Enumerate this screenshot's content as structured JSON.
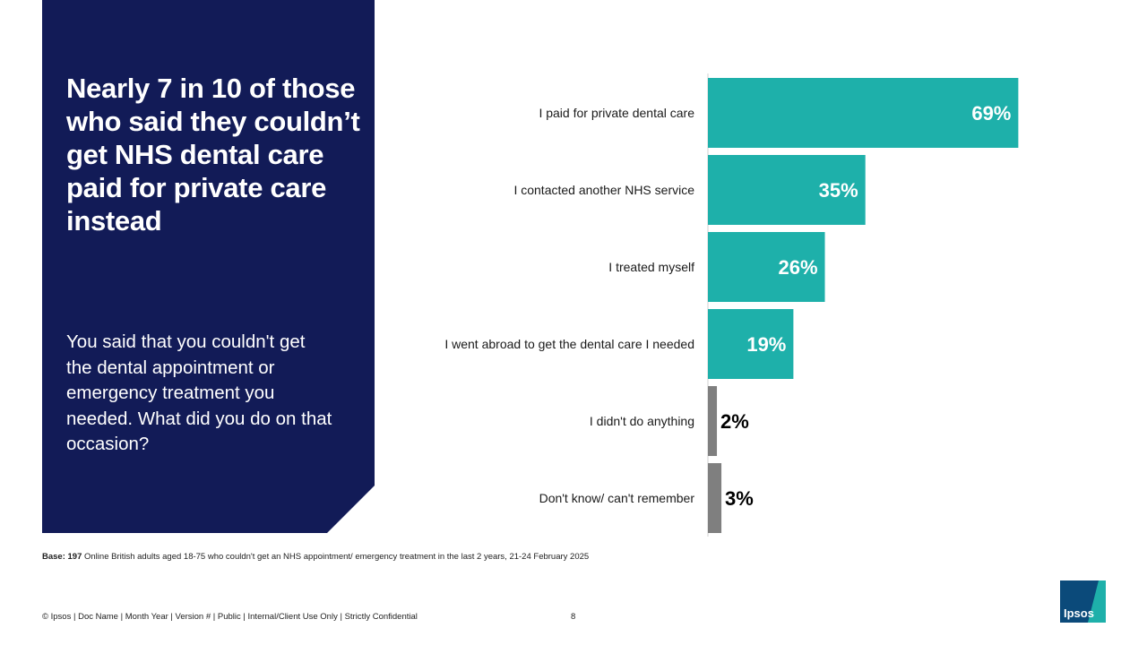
{
  "panel": {
    "headline": "Nearly 7 in 10 of those who said they couldn’t get NHS dental care paid for private care instead",
    "question": "You said that you couldn't get the dental appointment or emergency treatment you needed. What did you do on that occasion?"
  },
  "chart_data": {
    "type": "bar",
    "orientation": "horizontal",
    "categories": [
      "I paid for private dental care",
      "I contacted another NHS service",
      "I treated myself",
      "I went abroad to get the dental care I needed",
      "I didn't do anything",
      "Don't know/ can't remember"
    ],
    "values": [
      69,
      35,
      26,
      19,
      2,
      3
    ],
    "value_labels": [
      "69%",
      "35%",
      "26%",
      "19%",
      "2%",
      "3%"
    ],
    "bar_colors": [
      "#1eb0aa",
      "#1eb0aa",
      "#1eb0aa",
      "#1eb0aa",
      "#7f7f7f",
      "#7f7f7f"
    ],
    "label_colors": [
      "#ffffff",
      "#ffffff",
      "#ffffff",
      "#ffffff",
      "#000000",
      "#000000"
    ],
    "label_position": [
      "inside",
      "inside",
      "inside",
      "inside",
      "outside",
      "outside"
    ],
    "xlim": [
      0,
      100
    ],
    "grid": false,
    "legend": "none"
  },
  "footnote": {
    "base_label": "Base: 197",
    "base_text": " Online British adults aged 18-75 who couldn't get an NHS appointment/ emergency treatment in the last 2 years, 21-24 February 2025"
  },
  "footer": {
    "text": "© Ipsos | Doc Name | Month Year | Version # | Public | Internal/Client Use Only | Strictly Confidential",
    "page": "8"
  },
  "logo": {
    "text": "Ipsos"
  }
}
